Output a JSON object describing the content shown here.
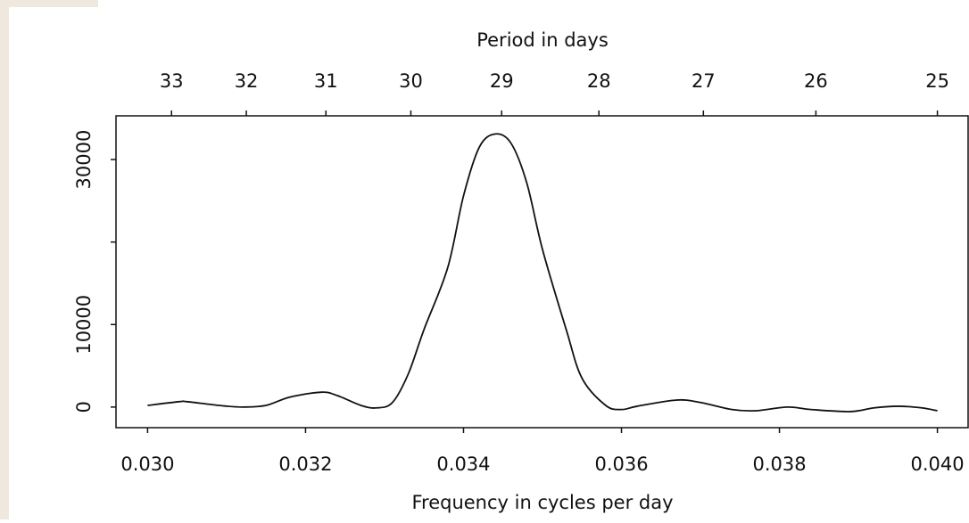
{
  "chart_data": {
    "type": "line",
    "title": "Period in days",
    "x_label": "Frequency in cycles per day",
    "x": [
      0.03,
      0.0304,
      0.0305,
      0.0309,
      0.0312,
      0.0315,
      0.0318,
      0.0322,
      0.0324,
      0.0327,
      0.0329,
      0.0331,
      0.0333,
      0.0335,
      0.0338,
      0.034,
      0.0342,
      0.0344,
      0.0346,
      0.0348,
      0.035,
      0.0353,
      0.0355,
      0.0358,
      0.036,
      0.0362,
      0.0367,
      0.037,
      0.0374,
      0.0377,
      0.0381,
      0.0384,
      0.0389,
      0.0392,
      0.0395,
      0.0398,
      0.04
    ],
    "values": [
      200,
      650,
      650,
      200,
      0,
      200,
      1200,
      1800,
      1400,
      200,
      -100,
      550,
      4000,
      9400,
      16900,
      25600,
      31500,
      33100,
      32000,
      27200,
      19100,
      9400,
      3500,
      200,
      -300,
      100,
      850,
      550,
      -300,
      -450,
      0,
      -300,
      -550,
      -100,
      100,
      -100,
      -450
    ],
    "color": "#111111",
    "xlim": [
      0.0296,
      0.0404
    ],
    "ylim": [
      -2500,
      35300
    ],
    "xticks": [
      {
        "value": 0.03,
        "label": "0.030"
      },
      {
        "value": 0.032,
        "label": "0.032"
      },
      {
        "value": 0.034,
        "label": "0.034"
      },
      {
        "value": 0.036,
        "label": "0.036"
      },
      {
        "value": 0.038,
        "label": "0.038"
      },
      {
        "value": 0.04,
        "label": "0.040"
      }
    ],
    "yticks": [
      0,
      10000,
      30000
    ],
    "yticks_unlabeled": [
      20000
    ],
    "top_ticks": [
      33,
      32,
      31,
      30,
      29,
      28,
      27,
      26,
      25
    ],
    "top_scale": "reciprocal"
  }
}
